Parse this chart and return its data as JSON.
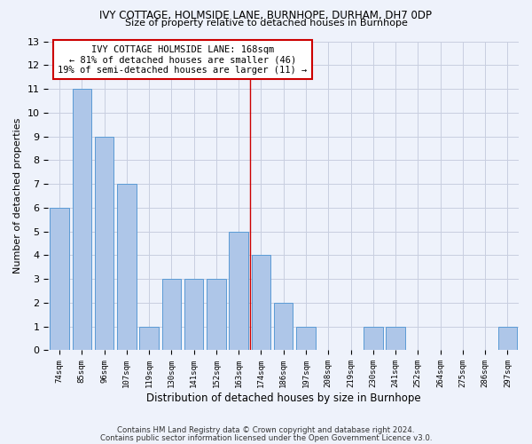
{
  "title1": "IVY COTTAGE, HOLMSIDE LANE, BURNHOPE, DURHAM, DH7 0DP",
  "title2": "Size of property relative to detached houses in Burnhope",
  "xlabel": "Distribution of detached houses by size in Burnhope",
  "ylabel": "Number of detached properties",
  "categories": [
    "74sqm",
    "85sqm",
    "96sqm",
    "107sqm",
    "119sqm",
    "130sqm",
    "141sqm",
    "152sqm",
    "163sqm",
    "174sqm",
    "186sqm",
    "197sqm",
    "208sqm",
    "219sqm",
    "230sqm",
    "241sqm",
    "252sqm",
    "264sqm",
    "275sqm",
    "286sqm",
    "297sqm"
  ],
  "values": [
    6,
    11,
    9,
    7,
    1,
    3,
    3,
    3,
    5,
    4,
    2,
    1,
    0,
    0,
    1,
    1,
    0,
    0,
    0,
    0,
    1
  ],
  "bar_color": "#aec6e8",
  "bar_edge_color": "#5b9bd5",
  "vline_x": 8.5,
  "vline_color": "#cc0000",
  "annotation_text": "IVY COTTAGE HOLMSIDE LANE: 168sqm\n← 81% of detached houses are smaller (46)\n19% of semi-detached houses are larger (11) →",
  "annotation_box_color": "#ffffff",
  "annotation_box_edge": "#cc0000",
  "ylim": [
    0,
    13
  ],
  "yticks": [
    0,
    1,
    2,
    3,
    4,
    5,
    6,
    7,
    8,
    9,
    10,
    11,
    12,
    13
  ],
  "background_color": "#eef2fb",
  "grid_color": "#c8cee0",
  "footer1": "Contains HM Land Registry data © Crown copyright and database right 2024.",
  "footer2": "Contains public sector information licensed under the Open Government Licence v3.0."
}
